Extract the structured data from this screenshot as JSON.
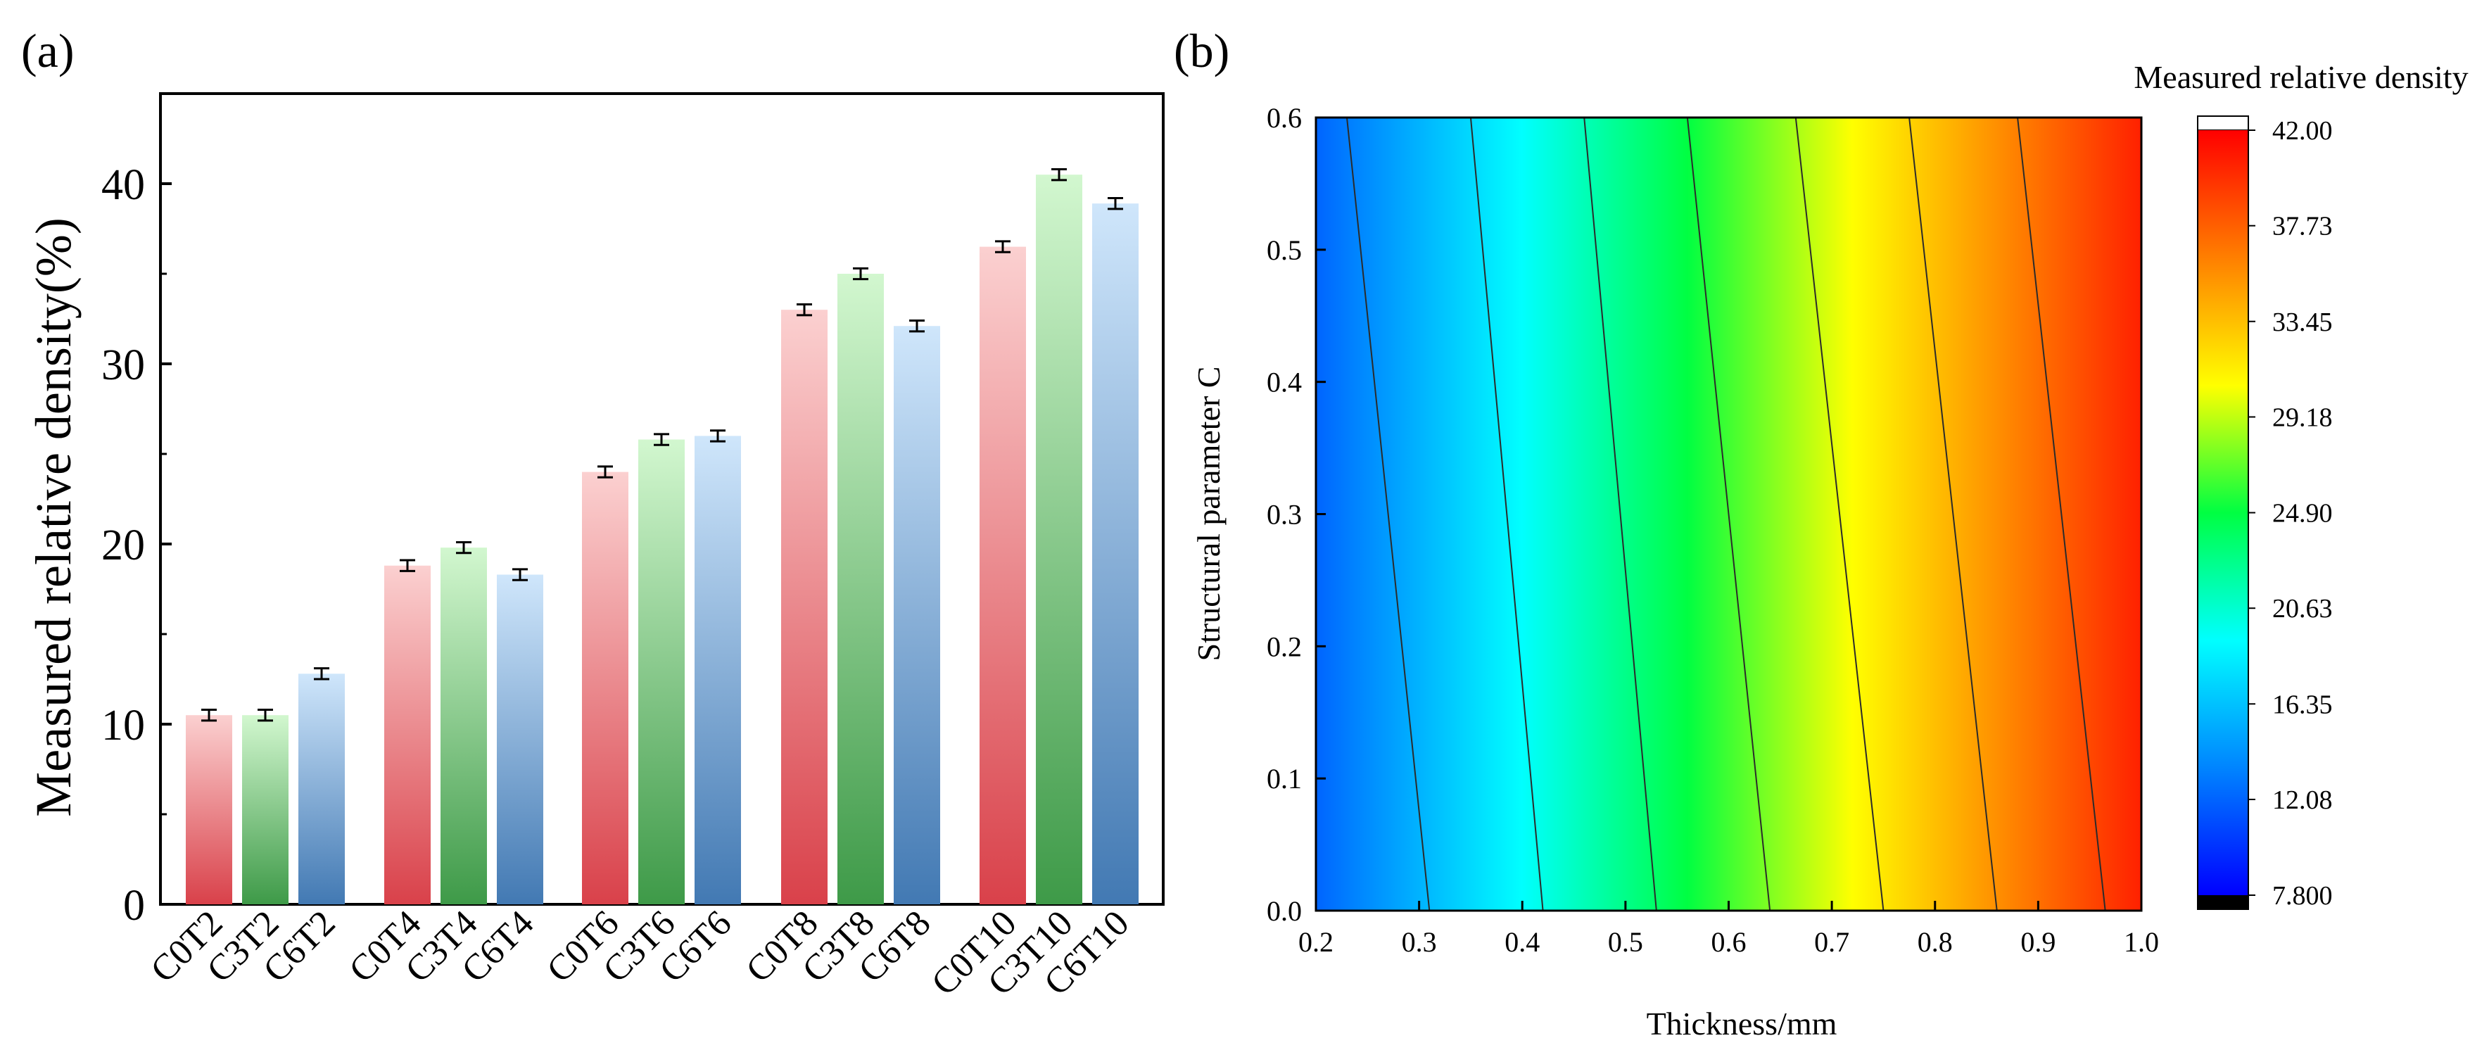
{
  "chart_data": [
    {
      "panel_label": "(a)",
      "type": "bar",
      "ylabel": "Measured relative density(%)",
      "xlabel": "",
      "ylim": [
        0,
        45
      ],
      "yticks": [
        0,
        10,
        20,
        30,
        40
      ],
      "groups": [
        {
          "bars": [
            {
              "label": "C0T2",
              "value": 10.5,
              "error": 0.3,
              "series": "C0"
            },
            {
              "label": "C3T2",
              "value": 10.5,
              "error": 0.3,
              "series": "C3"
            },
            {
              "label": "C6T2",
              "value": 12.8,
              "error": 0.3,
              "series": "C6"
            }
          ]
        },
        {
          "bars": [
            {
              "label": "C0T4",
              "value": 18.8,
              "error": 0.3,
              "series": "C0"
            },
            {
              "label": "C3T4",
              "value": 19.8,
              "error": 0.3,
              "series": "C3"
            },
            {
              "label": "C6T4",
              "value": 18.3,
              "error": 0.3,
              "series": "C6"
            }
          ]
        },
        {
          "bars": [
            {
              "label": "C0T6",
              "value": 24.0,
              "error": 0.3,
              "series": "C0"
            },
            {
              "label": "C3T6",
              "value": 25.8,
              "error": 0.3,
              "series": "C3"
            },
            {
              "label": "C6T6",
              "value": 26.0,
              "error": 0.3,
              "series": "C6"
            }
          ]
        },
        {
          "bars": [
            {
              "label": "C0T8",
              "value": 33.0,
              "error": 0.3,
              "series": "C0"
            },
            {
              "label": "C3T8",
              "value": 35.0,
              "error": 0.3,
              "series": "C3"
            },
            {
              "label": "C6T8",
              "value": 32.1,
              "error": 0.3,
              "series": "C6"
            }
          ]
        },
        {
          "bars": [
            {
              "label": "C0T10",
              "value": 36.5,
              "error": 0.3,
              "series": "C0"
            },
            {
              "label": "C3T10",
              "value": 40.5,
              "error": 0.3,
              "series": "C3"
            },
            {
              "label": "C6T10",
              "value": 38.9,
              "error": 0.3,
              "series": "C6"
            }
          ]
        }
      ],
      "series_colors": {
        "C0": {
          "top": "#fbd0d0",
          "bottom": "#d9414a"
        },
        "C3": {
          "top": "#d2f7cf",
          "bottom": "#3e9a48"
        },
        "C6": {
          "top": "#cfe6fb",
          "bottom": "#4279b3"
        }
      }
    },
    {
      "panel_label": "(b)",
      "type": "heatmap",
      "subtype": "contour",
      "xlabel": "Thickness/mm",
      "ylabel": "Structural parameter C",
      "xlim": [
        0.2,
        1.0
      ],
      "ylim": [
        0.0,
        0.6
      ],
      "xticks": [
        "0.2",
        "0.3",
        "0.4",
        "0.5",
        "0.6",
        "0.7",
        "0.8",
        "0.9",
        "1.0"
      ],
      "yticks": [
        "0.0",
        "0.1",
        "0.2",
        "0.3",
        "0.4",
        "0.5",
        "0.6"
      ],
      "colorbar_title": "Measured relative density",
      "colorbar_ticks": [
        "7.800",
        "12.08",
        "16.35",
        "20.63",
        "24.90",
        "29.18",
        "33.45",
        "37.73",
        "42.00"
      ],
      "colorbar_range": [
        7.8,
        42.0
      ],
      "colorbar_colors": [
        "#0000ff",
        "#0084ff",
        "#00ffff",
        "#00ff42",
        "#ffff00",
        "#ff7f00",
        "#ff0000"
      ],
      "contour_lines": [
        {
          "x_at_c0": 0.31,
          "x_at_c06": 0.23
        },
        {
          "x_at_c0": 0.42,
          "x_at_c06": 0.35
        },
        {
          "x_at_c0": 0.53,
          "x_at_c06": 0.46
        },
        {
          "x_at_c0": 0.64,
          "x_at_c06": 0.56
        },
        {
          "x_at_c0": 0.75,
          "x_at_c06": 0.665
        },
        {
          "x_at_c0": 0.86,
          "x_at_c06": 0.775
        },
        {
          "x_at_c0": 0.965,
          "x_at_c06": 0.88
        }
      ]
    }
  ]
}
